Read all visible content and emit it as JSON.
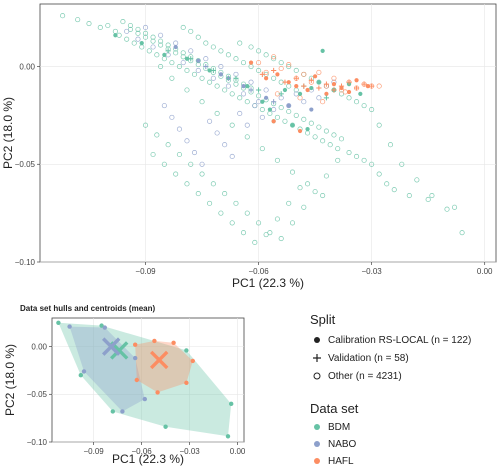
{
  "colors": {
    "BDM": "#66c2a5",
    "NABO": "#8da0cb",
    "HAFL": "#fc8d62"
  },
  "chart_data": [
    {
      "type": "scatter",
      "title": "",
      "xlabel": "PC1 (22.3 %)",
      "ylabel": "PC2 (18.0 %)",
      "xlim": [
        -0.118,
        0.003
      ],
      "ylim": [
        -0.1,
        0.032
      ],
      "xticks": [
        -0.09,
        -0.06,
        -0.03,
        0.0
      ],
      "xtick_labels": [
        "−0.09",
        "−0.06",
        "−0.03",
        "0.00"
      ],
      "yticks": [
        0.0,
        -0.05,
        -0.1
      ],
      "ytick_labels": [
        "0.00",
        "−0.05",
        "−0.10"
      ],
      "grid": true,
      "series": [
        {
          "name": "BDM",
          "split": "Other",
          "marker": "open-circle",
          "x": [
            -0.112,
            -0.108,
            -0.105,
            -0.102,
            -0.1,
            -0.098,
            -0.097,
            -0.095,
            -0.094,
            -0.093,
            -0.092,
            -0.091,
            -0.09,
            -0.089,
            -0.088,
            -0.087,
            -0.086,
            -0.085,
            -0.084,
            -0.083,
            -0.082,
            -0.081,
            -0.08,
            -0.079,
            -0.078,
            -0.077,
            -0.076,
            -0.075,
            -0.074,
            -0.073,
            -0.072,
            -0.071,
            -0.07,
            -0.069,
            -0.068,
            -0.067,
            -0.066,
            -0.065,
            -0.064,
            -0.063,
            -0.062,
            -0.061,
            -0.06,
            -0.059,
            -0.058,
            -0.057,
            -0.056,
            -0.055,
            -0.054,
            -0.053,
            -0.052,
            -0.051,
            -0.05,
            -0.049,
            -0.048,
            -0.047,
            -0.046,
            -0.045,
            -0.044,
            -0.043,
            -0.042,
            -0.041,
            -0.04,
            -0.039,
            -0.038,
            -0.036,
            -0.034,
            -0.032,
            -0.03,
            -0.028,
            -0.026,
            -0.024,
            -0.02,
            -0.015,
            -0.01,
            -0.006,
            -0.09,
            -0.087,
            -0.084,
            -0.081,
            -0.078,
            -0.075,
            -0.072,
            -0.069,
            -0.066,
            -0.063,
            -0.06,
            -0.057,
            -0.054,
            -0.051,
            -0.048,
            -0.045,
            -0.042,
            -0.039,
            -0.088,
            -0.085,
            -0.082,
            -0.079,
            -0.076,
            -0.073,
            -0.07,
            -0.067,
            -0.064,
            -0.061,
            -0.058,
            -0.055,
            -0.052,
            -0.049,
            -0.08,
            -0.078,
            -0.076,
            -0.074,
            -0.072,
            -0.07,
            -0.068,
            -0.066,
            -0.064,
            -0.062,
            -0.06,
            -0.058,
            -0.056,
            -0.054,
            -0.052,
            -0.05,
            -0.086,
            -0.083,
            -0.079,
            -0.075,
            -0.071,
            -0.067,
            -0.063,
            -0.059,
            -0.055,
            -0.051,
            -0.047,
            -0.043,
            -0.065,
            -0.062,
            -0.06,
            -0.058,
            -0.056,
            -0.054,
            -0.052,
            -0.05,
            -0.048,
            -0.046,
            -0.044,
            -0.042,
            -0.04,
            -0.038,
            -0.036,
            -0.034,
            -0.032,
            -0.03,
            -0.028,
            -0.025,
            -0.022,
            -0.018,
            -0.014,
            -0.008,
            -0.096,
            -0.094,
            -0.092,
            -0.09,
            -0.088,
            -0.086,
            -0.084,
            -0.082,
            -0.08,
            -0.078,
            -0.076,
            -0.074,
            -0.072,
            -0.07,
            -0.068,
            -0.066,
            -0.064,
            -0.062
          ],
          "y": [
            0.026,
            0.024,
            0.022,
            0.02,
            0.021,
            0.018,
            0.016,
            0.014,
            0.019,
            0.012,
            0.017,
            0.01,
            0.015,
            0.008,
            0.013,
            0.006,
            0.011,
            0.004,
            0.009,
            0.002,
            0.007,
            0.0,
            0.005,
            -0.002,
            0.003,
            -0.004,
            0.001,
            -0.006,
            -0.001,
            -0.008,
            -0.003,
            -0.01,
            -0.005,
            -0.012,
            -0.007,
            -0.014,
            -0.009,
            -0.016,
            -0.011,
            -0.018,
            -0.013,
            -0.02,
            -0.015,
            -0.022,
            -0.017,
            -0.024,
            -0.019,
            -0.026,
            -0.021,
            -0.028,
            -0.023,
            -0.03,
            -0.025,
            -0.032,
            -0.027,
            -0.034,
            -0.029,
            -0.036,
            -0.031,
            -0.038,
            -0.033,
            -0.04,
            -0.035,
            -0.042,
            -0.037,
            -0.044,
            -0.046,
            -0.048,
            -0.05,
            -0.055,
            -0.06,
            -0.063,
            -0.066,
            -0.068,
            -0.073,
            -0.085,
            -0.03,
            -0.035,
            -0.04,
            -0.045,
            -0.05,
            -0.055,
            -0.06,
            -0.065,
            -0.07,
            -0.075,
            -0.08,
            -0.085,
            -0.088,
            -0.08,
            -0.072,
            -0.064,
            -0.056,
            -0.048,
            -0.045,
            -0.05,
            -0.055,
            -0.06,
            -0.065,
            -0.07,
            -0.075,
            -0.08,
            -0.085,
            -0.09,
            -0.086,
            -0.078,
            -0.07,
            -0.062,
            0.02,
            0.018,
            0.015,
            0.012,
            0.01,
            0.008,
            0.006,
            0.004,
            0.002,
            0.0,
            -0.002,
            -0.004,
            -0.006,
            -0.008,
            -0.01,
            -0.012,
            0.0,
            -0.006,
            -0.012,
            -0.018,
            -0.024,
            -0.03,
            -0.036,
            -0.042,
            -0.048,
            -0.054,
            -0.06,
            -0.066,
            0.012,
            0.01,
            0.008,
            0.006,
            0.004,
            0.002,
            0.0,
            -0.002,
            -0.004,
            -0.006,
            -0.008,
            -0.01,
            -0.012,
            -0.014,
            -0.016,
            -0.018,
            -0.02,
            -0.022,
            -0.03,
            -0.04,
            -0.05,
            -0.058,
            -0.066,
            -0.072,
            0.023,
            0.021,
            0.019,
            0.017,
            0.015,
            0.013,
            0.011,
            0.009,
            0.007,
            0.005,
            0.003,
            0.001,
            -0.001,
            -0.003,
            -0.005,
            -0.007,
            -0.009,
            -0.011
          ]
        },
        {
          "name": "NABO",
          "split": "Other",
          "marker": "open-circle",
          "x": [
            -0.095,
            -0.092,
            -0.09,
            -0.088,
            -0.086,
            -0.084,
            -0.082,
            -0.08,
            -0.078,
            -0.076,
            -0.074,
            -0.072,
            -0.07,
            -0.068,
            -0.066,
            -0.064,
            -0.062,
            -0.06,
            -0.058,
            -0.056,
            -0.054,
            -0.052,
            -0.05,
            -0.048,
            -0.046,
            -0.044,
            -0.042,
            -0.04,
            -0.085,
            -0.083,
            -0.081,
            -0.079,
            -0.077,
            -0.075,
            -0.073,
            -0.071,
            -0.069,
            -0.067,
            -0.065,
            -0.063,
            -0.061,
            -0.059
          ],
          "y": [
            0.018,
            0.014,
            0.02,
            0.01,
            0.016,
            0.006,
            0.012,
            0.002,
            0.008,
            -0.002,
            0.004,
            -0.006,
            0.0,
            -0.01,
            -0.004,
            -0.014,
            -0.008,
            -0.018,
            -0.012,
            -0.022,
            -0.016,
            -0.02,
            -0.014,
            -0.018,
            -0.012,
            -0.016,
            -0.01,
            -0.008,
            -0.02,
            -0.026,
            -0.032,
            -0.038,
            -0.044,
            -0.05,
            -0.028,
            -0.034,
            -0.04,
            -0.046,
            -0.024,
            -0.03,
            -0.02,
            -0.026
          ]
        },
        {
          "name": "HAFL",
          "split": "Other",
          "marker": "open-circle",
          "x": [
            -0.06,
            -0.058,
            -0.056,
            -0.054,
            -0.052,
            -0.05,
            -0.048,
            -0.046,
            -0.044,
            -0.042,
            -0.04,
            -0.038,
            -0.036,
            -0.034,
            -0.032,
            -0.03,
            -0.028,
            -0.055,
            -0.049,
            -0.043,
            -0.037
          ],
          "y": [
            0.002,
            -0.003,
            0.005,
            -0.001,
            0.001,
            -0.006,
            -0.004,
            -0.008,
            -0.003,
            -0.01,
            -0.006,
            -0.012,
            -0.008,
            -0.011,
            -0.009,
            -0.01,
            -0.01,
            -0.014,
            -0.016,
            -0.018,
            -0.013
          ]
        },
        {
          "name": "BDM",
          "split": "Calibration RS-LOCAL",
          "marker": "filled-circle",
          "x": [
            -0.098,
            -0.091,
            -0.085,
            -0.079,
            -0.073,
            -0.068,
            -0.063,
            -0.059,
            -0.057,
            -0.053,
            -0.049,
            -0.046,
            -0.044,
            -0.04,
            -0.036,
            -0.033,
            -0.056,
            -0.051,
            -0.047,
            -0.043
          ],
          "y": [
            0.016,
            0.012,
            0.006,
            0.004,
            -0.002,
            -0.006,
            -0.01,
            -0.018,
            -0.022,
            -0.012,
            -0.014,
            -0.011,
            -0.008,
            -0.012,
            -0.009,
            -0.014,
            -0.028,
            -0.03,
            -0.032,
            0.008
          ]
        },
        {
          "name": "NABO",
          "split": "Calibration RS-LOCAL",
          "marker": "filled-circle",
          "x": [
            -0.082,
            -0.076,
            -0.07,
            -0.064,
            -0.058,
            -0.052,
            -0.046
          ],
          "y": [
            0.01,
            0.003,
            -0.004,
            -0.01,
            -0.016,
            -0.02,
            -0.022
          ]
        },
        {
          "name": "HAFL",
          "split": "Calibration RS-LOCAL",
          "marker": "filled-circle",
          "x": [
            -0.062,
            -0.058,
            -0.055,
            -0.052,
            -0.05,
            -0.047,
            -0.045,
            -0.042,
            -0.04,
            -0.038,
            -0.036,
            -0.034,
            -0.031,
            -0.056,
            -0.049
          ],
          "y": [
            0.002,
            -0.006,
            -0.004,
            -0.008,
            -0.01,
            -0.012,
            -0.005,
            -0.014,
            -0.009,
            -0.011,
            -0.013,
            -0.007,
            -0.01,
            -0.028,
            -0.033
          ]
        },
        {
          "name": "BDM",
          "split": "Validation",
          "marker": "plus",
          "x": [
            -0.084,
            -0.078,
            -0.072,
            -0.066,
            -0.06,
            -0.054,
            -0.048,
            -0.042
          ],
          "y": [
            0.008,
            0.004,
            -0.002,
            -0.006,
            -0.012,
            -0.014,
            -0.01,
            -0.016
          ]
        },
        {
          "name": "NABO",
          "split": "Validation",
          "marker": "plus",
          "x": [
            -0.074,
            -0.068,
            -0.062,
            -0.056
          ],
          "y": [
            0.0,
            -0.006,
            -0.012,
            -0.018
          ]
        },
        {
          "name": "HAFL",
          "split": "Validation",
          "marker": "plus",
          "x": [
            -0.059,
            -0.056,
            -0.053,
            -0.05,
            -0.048,
            -0.046,
            -0.044,
            -0.042,
            -0.04,
            -0.038,
            -0.036,
            -0.034,
            -0.032,
            -0.03
          ],
          "y": [
            -0.004,
            -0.002,
            -0.008,
            -0.006,
            -0.01,
            -0.007,
            -0.011,
            -0.009,
            -0.012,
            -0.01,
            -0.008,
            -0.011,
            -0.009,
            -0.01
          ]
        }
      ]
    },
    {
      "type": "scatter",
      "title": "Data set hulls and centroids (mean)",
      "xlabel": "PC1 (22.3 %)",
      "ylabel": "PC2 (18.0 %)",
      "xlim": [
        -0.116,
        0.004
      ],
      "ylim": [
        -0.1,
        0.03
      ],
      "xticks": [
        -0.09,
        -0.06,
        -0.03,
        0.0
      ],
      "xtick_labels": [
        "−0.09",
        "−0.06",
        "−0.03",
        "0.00"
      ],
      "yticks": [
        0.0,
        -0.05,
        -0.1
      ],
      "ytick_labels": [
        "0.00",
        "−0.05",
        "−0.10"
      ],
      "grid": true,
      "series": [
        {
          "name": "BDM",
          "hull_x": [
            -0.112,
            -0.085,
            -0.032,
            -0.004,
            -0.006,
            -0.045,
            -0.078,
            -0.098
          ],
          "hull_y": [
            0.025,
            0.022,
            -0.004,
            -0.06,
            -0.094,
            -0.084,
            -0.068,
            -0.03
          ],
          "centroid": [
            -0.074,
            -0.004
          ]
        },
        {
          "name": "NABO",
          "hull_x": [
            -0.105,
            -0.083,
            -0.064,
            -0.058,
            -0.072,
            -0.096
          ],
          "hull_y": [
            0.021,
            0.02,
            -0.012,
            -0.055,
            -0.068,
            -0.026
          ],
          "centroid": [
            -0.079,
            0.0
          ]
        },
        {
          "name": "HAFL",
          "hull_x": [
            -0.064,
            -0.052,
            -0.04,
            -0.028,
            -0.032,
            -0.05,
            -0.063
          ],
          "hull_y": [
            0.002,
            0.006,
            0.004,
            -0.015,
            -0.038,
            -0.048,
            -0.035
          ],
          "centroid": [
            -0.049,
            -0.014
          ]
        }
      ]
    }
  ],
  "legend": {
    "split_title": "Split",
    "split_items": [
      {
        "label": "Calibration RS-LOCAL (n = 122)",
        "marker": "filled-circle"
      },
      {
        "label": "Validation (n = 58)",
        "marker": "plus"
      },
      {
        "label": "Other (n = 4231)",
        "marker": "open-circle"
      }
    ],
    "dataset_title": "Data set",
    "dataset_items": [
      {
        "label": "BDM",
        "color": "#66c2a5"
      },
      {
        "label": "NABO",
        "color": "#8da0cb"
      },
      {
        "label": "HAFL",
        "color": "#fc8d62"
      }
    ]
  }
}
